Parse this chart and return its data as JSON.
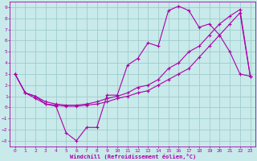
{
  "xlabel": "Windchill (Refroidissement éolien,°C)",
  "xlim": [
    -0.5,
    23.5
  ],
  "ylim": [
    -3.5,
    9.5
  ],
  "xticks": [
    0,
    1,
    2,
    3,
    4,
    5,
    6,
    7,
    8,
    9,
    10,
    11,
    12,
    13,
    14,
    15,
    16,
    17,
    18,
    19,
    20,
    21,
    22,
    23
  ],
  "yticks": [
    -3,
    -2,
    -1,
    0,
    1,
    2,
    3,
    4,
    5,
    6,
    7,
    8,
    9
  ],
  "bg_color": "#c8eaea",
  "grid_color": "#a0cccc",
  "line_color": "#aa00aa",
  "line1_x": [
    0,
    1,
    2,
    3,
    4,
    5,
    6,
    7,
    8,
    9,
    10,
    11,
    12,
    13,
    14,
    15,
    16,
    17,
    18,
    19,
    20,
    21,
    22,
    23
  ],
  "line1_y": [
    3.0,
    1.3,
    1.0,
    0.3,
    0.1,
    -2.3,
    -3.0,
    -1.8,
    -1.8,
    1.1,
    1.1,
    3.8,
    4.4,
    5.8,
    5.5,
    8.7,
    9.1,
    8.7,
    7.2,
    7.5,
    6.5,
    5.0,
    3.0,
    2.8
  ],
  "line2_x": [
    0,
    1,
    2,
    3,
    4,
    5,
    6,
    7,
    8,
    9,
    10,
    11,
    12,
    13,
    14,
    15,
    16,
    17,
    18,
    19,
    20,
    21,
    22,
    23
  ],
  "line2_y": [
    3.0,
    1.3,
    0.8,
    0.3,
    0.2,
    0.1,
    0.1,
    0.2,
    0.3,
    0.5,
    0.8,
    1.0,
    1.3,
    1.5,
    2.0,
    2.5,
    3.0,
    3.5,
    4.5,
    5.5,
    6.5,
    7.5,
    8.5,
    2.8
  ],
  "line3_x": [
    0,
    1,
    2,
    3,
    4,
    5,
    6,
    7,
    8,
    9,
    10,
    11,
    12,
    13,
    14,
    15,
    16,
    17,
    18,
    19,
    20,
    21,
    22,
    23
  ],
  "line3_y": [
    3.0,
    1.3,
    1.0,
    0.5,
    0.3,
    0.2,
    0.2,
    0.3,
    0.5,
    0.8,
    1.0,
    1.3,
    1.8,
    2.0,
    2.5,
    3.5,
    4.0,
    5.0,
    5.5,
    6.5,
    7.5,
    8.2,
    8.8,
    2.8
  ]
}
